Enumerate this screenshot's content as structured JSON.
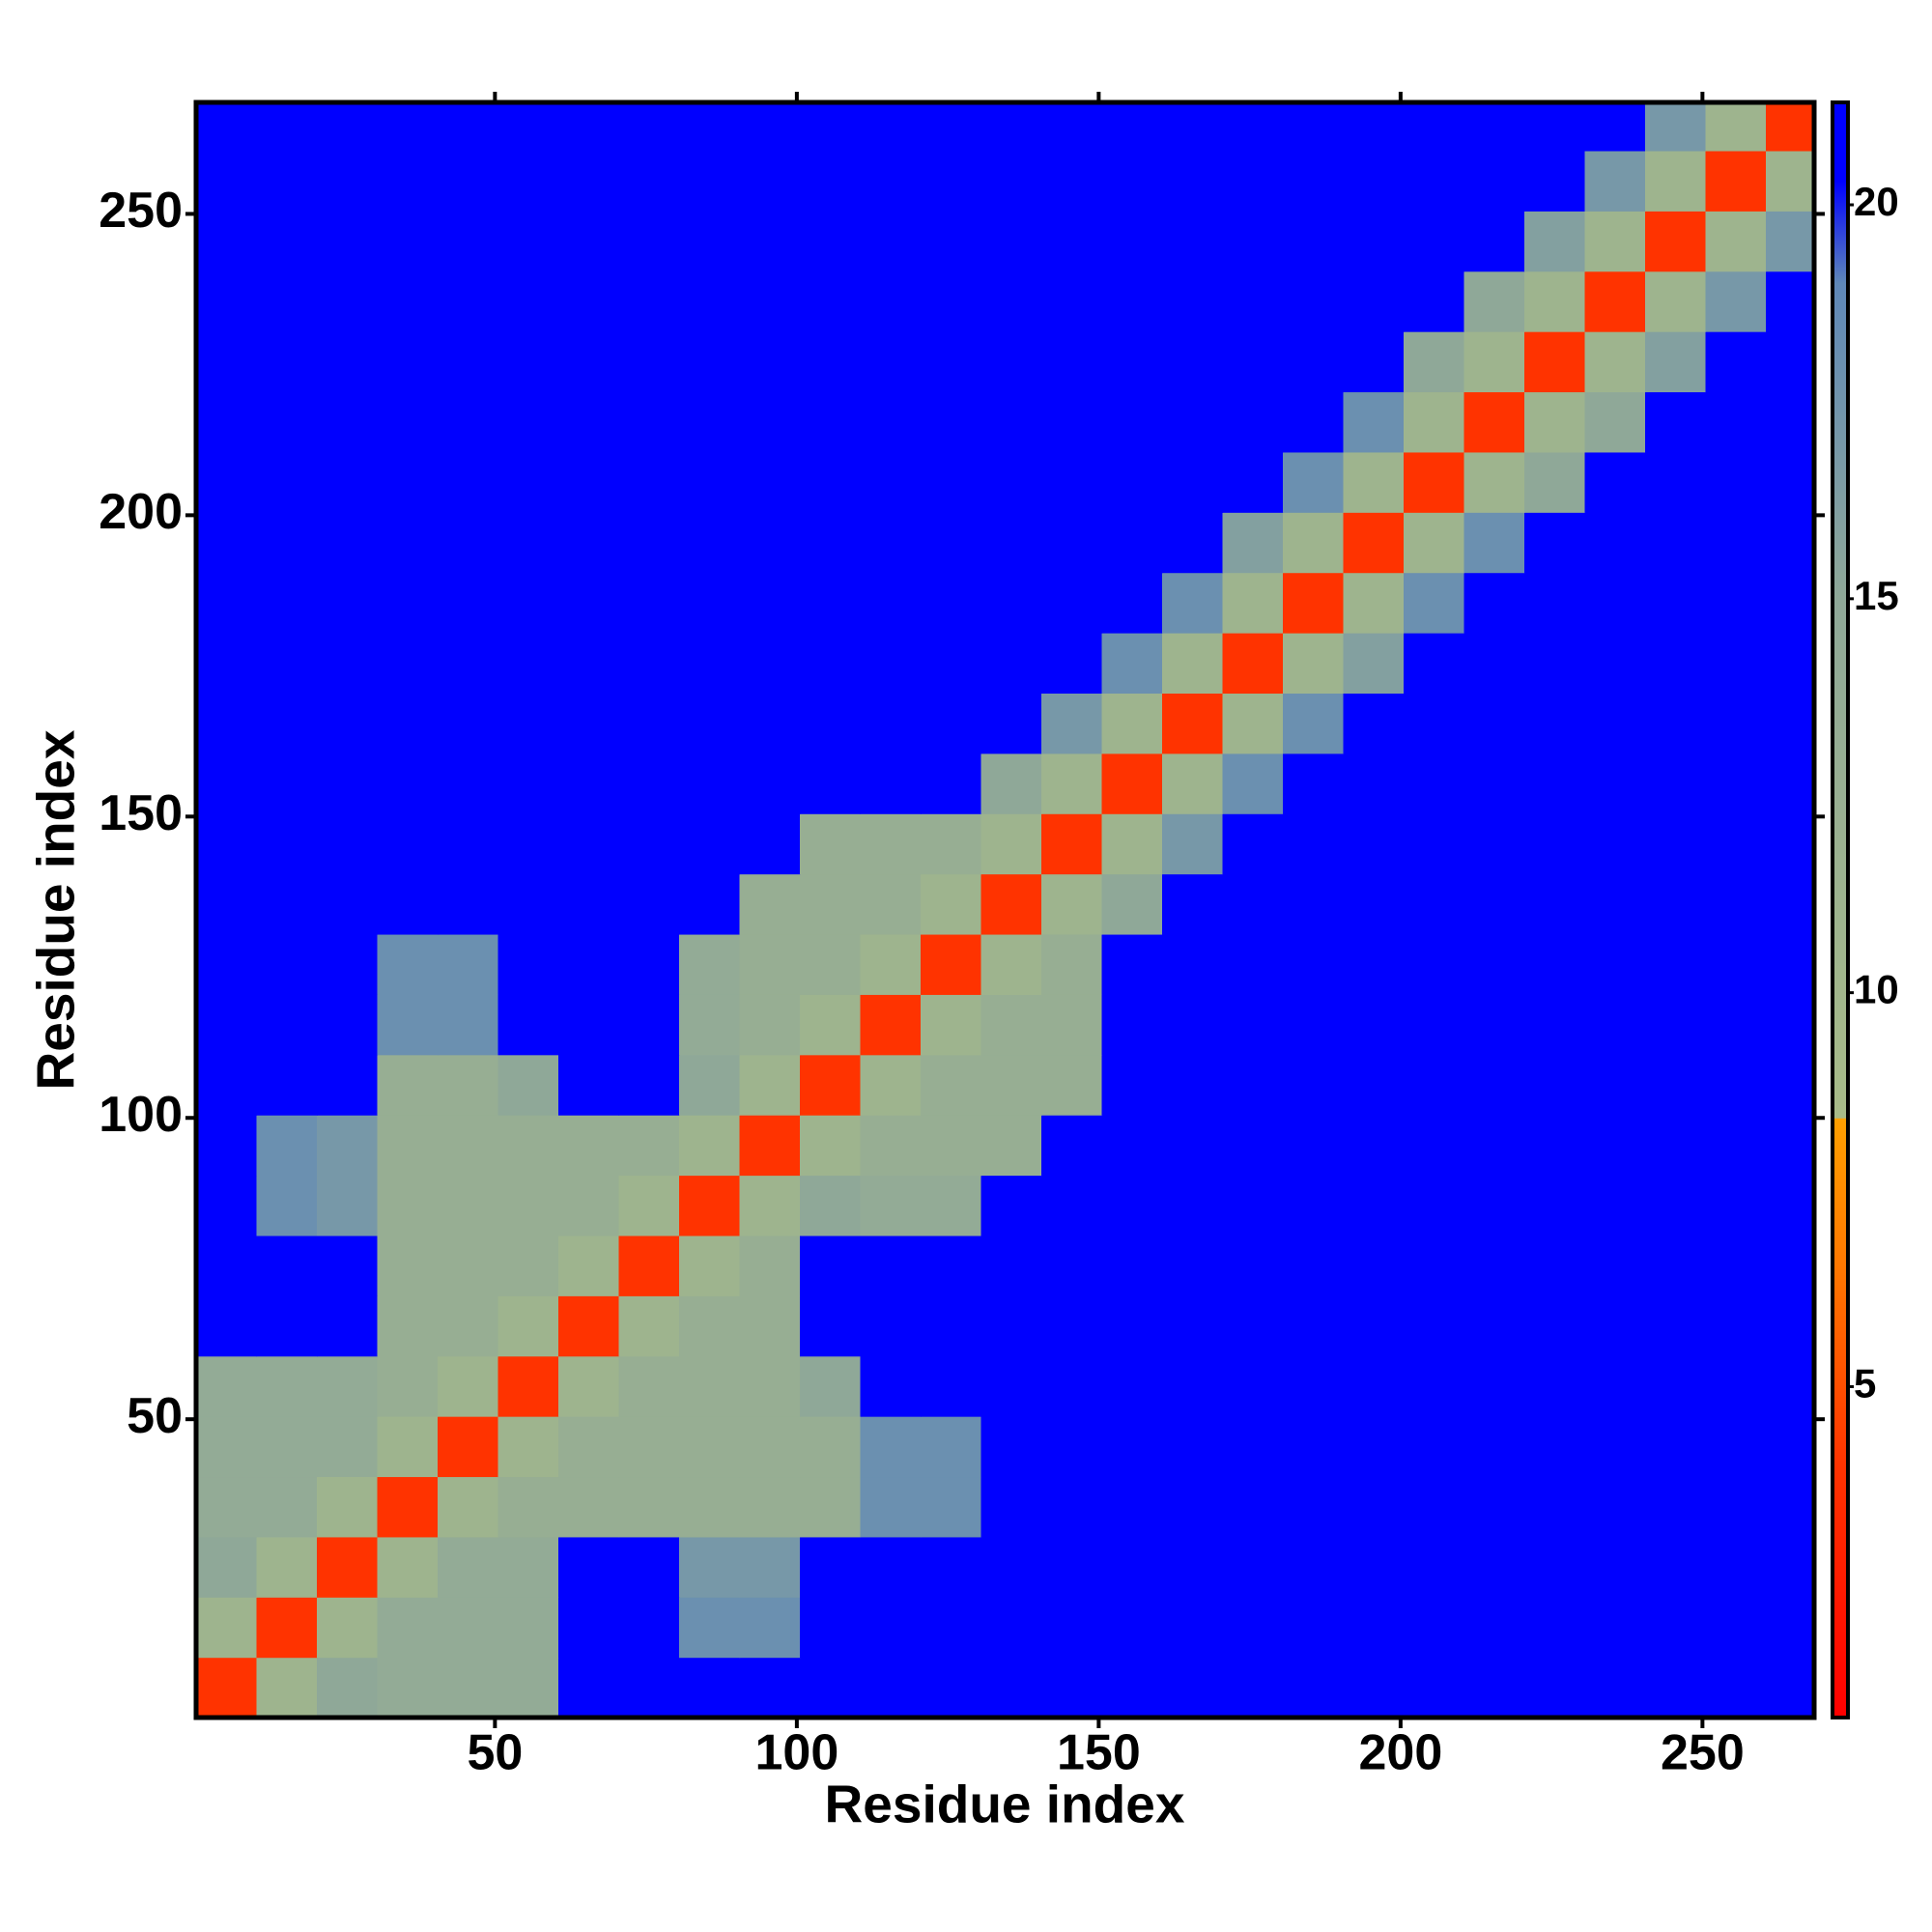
{
  "chart_data": {
    "type": "heatmap",
    "x_label": "Residue index",
    "y_label": "Residue index",
    "x": [
      5.5,
      15.5,
      25.5,
      35.5,
      45.5,
      55.5,
      65.5,
      75.5,
      85.5,
      95.5,
      105.5,
      115.5,
      125.5,
      135.5,
      145.5,
      155.5,
      165.5,
      175.5,
      185.5,
      195.5,
      205.5,
      215.5,
      225.5,
      235.5,
      245.5,
      255.5,
      265.5
    ],
    "y": [
      5.5,
      15.5,
      25.5,
      35.5,
      45.5,
      55.5,
      65.5,
      75.5,
      85.5,
      95.5,
      105.5,
      115.5,
      125.5,
      135.5,
      145.5,
      155.5,
      165.5,
      175.5,
      185.5,
      195.5,
      205.5,
      215.5,
      225.5,
      235.5,
      245.5,
      255.5,
      265.5
    ],
    "z": [
      [
        4,
        11,
        15,
        14,
        14,
        14,
        21,
        21,
        21,
        21,
        21,
        21,
        21,
        21,
        21,
        21,
        21,
        21,
        21,
        21,
        21,
        21,
        21,
        21,
        21,
        21,
        21
      ],
      [
        11,
        4,
        11,
        14,
        14,
        14,
        21,
        21,
        18,
        18,
        21,
        21,
        21,
        21,
        21,
        21,
        21,
        21,
        21,
        21,
        21,
        21,
        21,
        21,
        21,
        21,
        21
      ],
      [
        15,
        11,
        4,
        11,
        14,
        14,
        21,
        21,
        17,
        17,
        21,
        21,
        21,
        21,
        21,
        21,
        21,
        21,
        21,
        21,
        21,
        21,
        21,
        21,
        21,
        21,
        21
      ],
      [
        14,
        14,
        11,
        4,
        11,
        13,
        13,
        13,
        13,
        13,
        13,
        18,
        18,
        21,
        21,
        21,
        21,
        21,
        21,
        21,
        21,
        21,
        21,
        21,
        21,
        21,
        21
      ],
      [
        14,
        14,
        14,
        11,
        4,
        11,
        13,
        13,
        13,
        13,
        13,
        18,
        18,
        21,
        21,
        21,
        21,
        21,
        21,
        21,
        21,
        21,
        21,
        21,
        21,
        21,
        21
      ],
      [
        14,
        14,
        14,
        13,
        11,
        4,
        11,
        13,
        13,
        13,
        15,
        21,
        21,
        21,
        21,
        21,
        21,
        21,
        21,
        21,
        21,
        21,
        21,
        21,
        21,
        21,
        21
      ],
      [
        21,
        21,
        21,
        13,
        13,
        11,
        4,
        11,
        13,
        13,
        21,
        21,
        21,
        21,
        21,
        21,
        21,
        21,
        21,
        21,
        21,
        21,
        21,
        21,
        21,
        21,
        21
      ],
      [
        21,
        21,
        21,
        13,
        13,
        13,
        11,
        4,
        11,
        13,
        21,
        21,
        21,
        21,
        21,
        21,
        21,
        21,
        21,
        21,
        21,
        21,
        21,
        21,
        21,
        21,
        21
      ],
      [
        21,
        18,
        17,
        13,
        13,
        13,
        13,
        11,
        4,
        11,
        15,
        14,
        14,
        21,
        21,
        21,
        21,
        21,
        21,
        21,
        21,
        21,
        21,
        21,
        21,
        21,
        21
      ],
      [
        21,
        18,
        17,
        13,
        13,
        13,
        13,
        13,
        11,
        4,
        11,
        13,
        13,
        13,
        21,
        21,
        21,
        21,
        21,
        21,
        21,
        21,
        21,
        21,
        21,
        21,
        21
      ],
      [
        21,
        21,
        21,
        13,
        13,
        15,
        21,
        21,
        15,
        11,
        4,
        11,
        13,
        13,
        13,
        21,
        21,
        21,
        21,
        21,
        21,
        21,
        21,
        21,
        21,
        21,
        21
      ],
      [
        21,
        21,
        21,
        18,
        18,
        21,
        21,
        21,
        14,
        13,
        11,
        4,
        11,
        13,
        13,
        21,
        21,
        21,
        21,
        21,
        21,
        21,
        21,
        21,
        21,
        21,
        21
      ],
      [
        21,
        21,
        21,
        18,
        18,
        21,
        21,
        21,
        14,
        13,
        13,
        11,
        4,
        11,
        13,
        21,
        21,
        21,
        21,
        21,
        21,
        21,
        21,
        21,
        21,
        21,
        21
      ],
      [
        21,
        21,
        21,
        21,
        21,
        21,
        21,
        21,
        21,
        13,
        13,
        13,
        11,
        4,
        11,
        15,
        21,
        21,
        21,
        21,
        21,
        21,
        21,
        21,
        21,
        21,
        21
      ],
      [
        21,
        21,
        21,
        21,
        21,
        21,
        21,
        21,
        21,
        21,
        13,
        13,
        13,
        11,
        4,
        11,
        17,
        21,
        21,
        21,
        21,
        21,
        21,
        21,
        21,
        21,
        21
      ],
      [
        21,
        21,
        21,
        21,
        21,
        21,
        21,
        21,
        21,
        21,
        21,
        21,
        21,
        15,
        11,
        4,
        11,
        18,
        21,
        21,
        21,
        21,
        21,
        21,
        21,
        21,
        21
      ],
      [
        21,
        21,
        21,
        21,
        21,
        21,
        21,
        21,
        21,
        21,
        21,
        21,
        21,
        21,
        17,
        11,
        4,
        11,
        18,
        21,
        21,
        21,
        21,
        21,
        21,
        21,
        21
      ],
      [
        21,
        21,
        21,
        21,
        21,
        21,
        21,
        21,
        21,
        21,
        21,
        21,
        21,
        21,
        21,
        18,
        11,
        4,
        11,
        16,
        21,
        21,
        21,
        21,
        21,
        21,
        21
      ],
      [
        21,
        21,
        21,
        21,
        21,
        21,
        21,
        21,
        21,
        21,
        21,
        21,
        21,
        21,
        21,
        21,
        18,
        11,
        4,
        11,
        18,
        21,
        21,
        21,
        21,
        21,
        21
      ],
      [
        21,
        21,
        21,
        21,
        21,
        21,
        21,
        21,
        21,
        21,
        21,
        21,
        21,
        21,
        21,
        21,
        21,
        16,
        11,
        4,
        11,
        18,
        21,
        21,
        21,
        21,
        21
      ],
      [
        21,
        21,
        21,
        21,
        21,
        21,
        21,
        21,
        21,
        21,
        21,
        21,
        21,
        21,
        21,
        21,
        21,
        21,
        18,
        11,
        4,
        11,
        15,
        21,
        21,
        21,
        21
      ],
      [
        21,
        21,
        21,
        21,
        21,
        21,
        21,
        21,
        21,
        21,
        21,
        21,
        21,
        21,
        21,
        21,
        21,
        21,
        21,
        18,
        11,
        4,
        11,
        15,
        21,
        21,
        21
      ],
      [
        21,
        21,
        21,
        21,
        21,
        21,
        21,
        21,
        21,
        21,
        21,
        21,
        21,
        21,
        21,
        21,
        21,
        21,
        21,
        21,
        15,
        11,
        4,
        11,
        16,
        21,
        21
      ],
      [
        21,
        21,
        21,
        21,
        21,
        21,
        21,
        21,
        21,
        21,
        21,
        21,
        21,
        21,
        21,
        21,
        21,
        21,
        21,
        21,
        21,
        15,
        11,
        4,
        11,
        17,
        21
      ],
      [
        21,
        21,
        21,
        21,
        21,
        21,
        21,
        21,
        21,
        21,
        21,
        21,
        21,
        21,
        21,
        21,
        21,
        21,
        21,
        21,
        21,
        21,
        16,
        11,
        4,
        11,
        17
      ],
      [
        21,
        21,
        21,
        21,
        21,
        21,
        21,
        21,
        21,
        21,
        21,
        21,
        21,
        21,
        21,
        21,
        21,
        21,
        21,
        21,
        21,
        21,
        21,
        17,
        11,
        4,
        11
      ],
      [
        21,
        21,
        21,
        21,
        21,
        21,
        21,
        21,
        21,
        21,
        21,
        21,
        21,
        21,
        21,
        21,
        21,
        21,
        21,
        21,
        21,
        21,
        21,
        21,
        17,
        11,
        4
      ]
    ],
    "xlim": [
      0.5,
      268.5
    ],
    "ylim": [
      0.5,
      268.5
    ],
    "xticks": [
      50,
      100,
      150,
      200,
      250
    ],
    "yticks": [
      50,
      100,
      150,
      200,
      250
    ],
    "zlim": [
      0.8,
      21.3
    ],
    "zticks": [
      5,
      10,
      15,
      20
    ],
    "colorscale": [
      [
        0.8,
        "#ff0000"
      ],
      [
        4,
        "#ff3300"
      ],
      [
        6.5,
        "#ff7700"
      ],
      [
        8.4,
        "#ffa000"
      ],
      [
        8.41,
        "#a8bb88"
      ],
      [
        15,
        "#8fa898"
      ],
      [
        19,
        "#5f88b8"
      ],
      [
        20.3,
        "#0000ff"
      ],
      [
        21.3,
        "#0000ff"
      ]
    ]
  }
}
